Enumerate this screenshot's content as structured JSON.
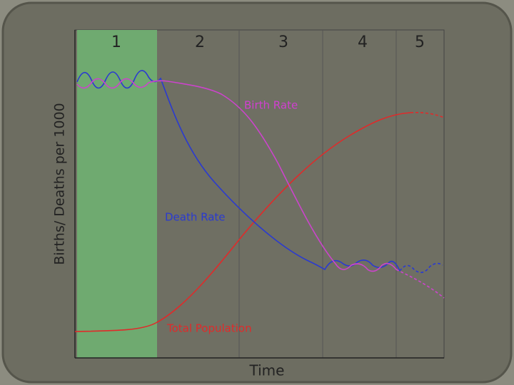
{
  "stages": [
    "1",
    "2",
    "3",
    "4",
    "5"
  ],
  "y_axis_label": "Births/ Deaths per 1000",
  "x_axis_label": "Time",
  "curve_labels": {
    "birth_rate": "Birth Rate",
    "death_rate": "Death Rate",
    "total_population": "Total Population"
  }
}
